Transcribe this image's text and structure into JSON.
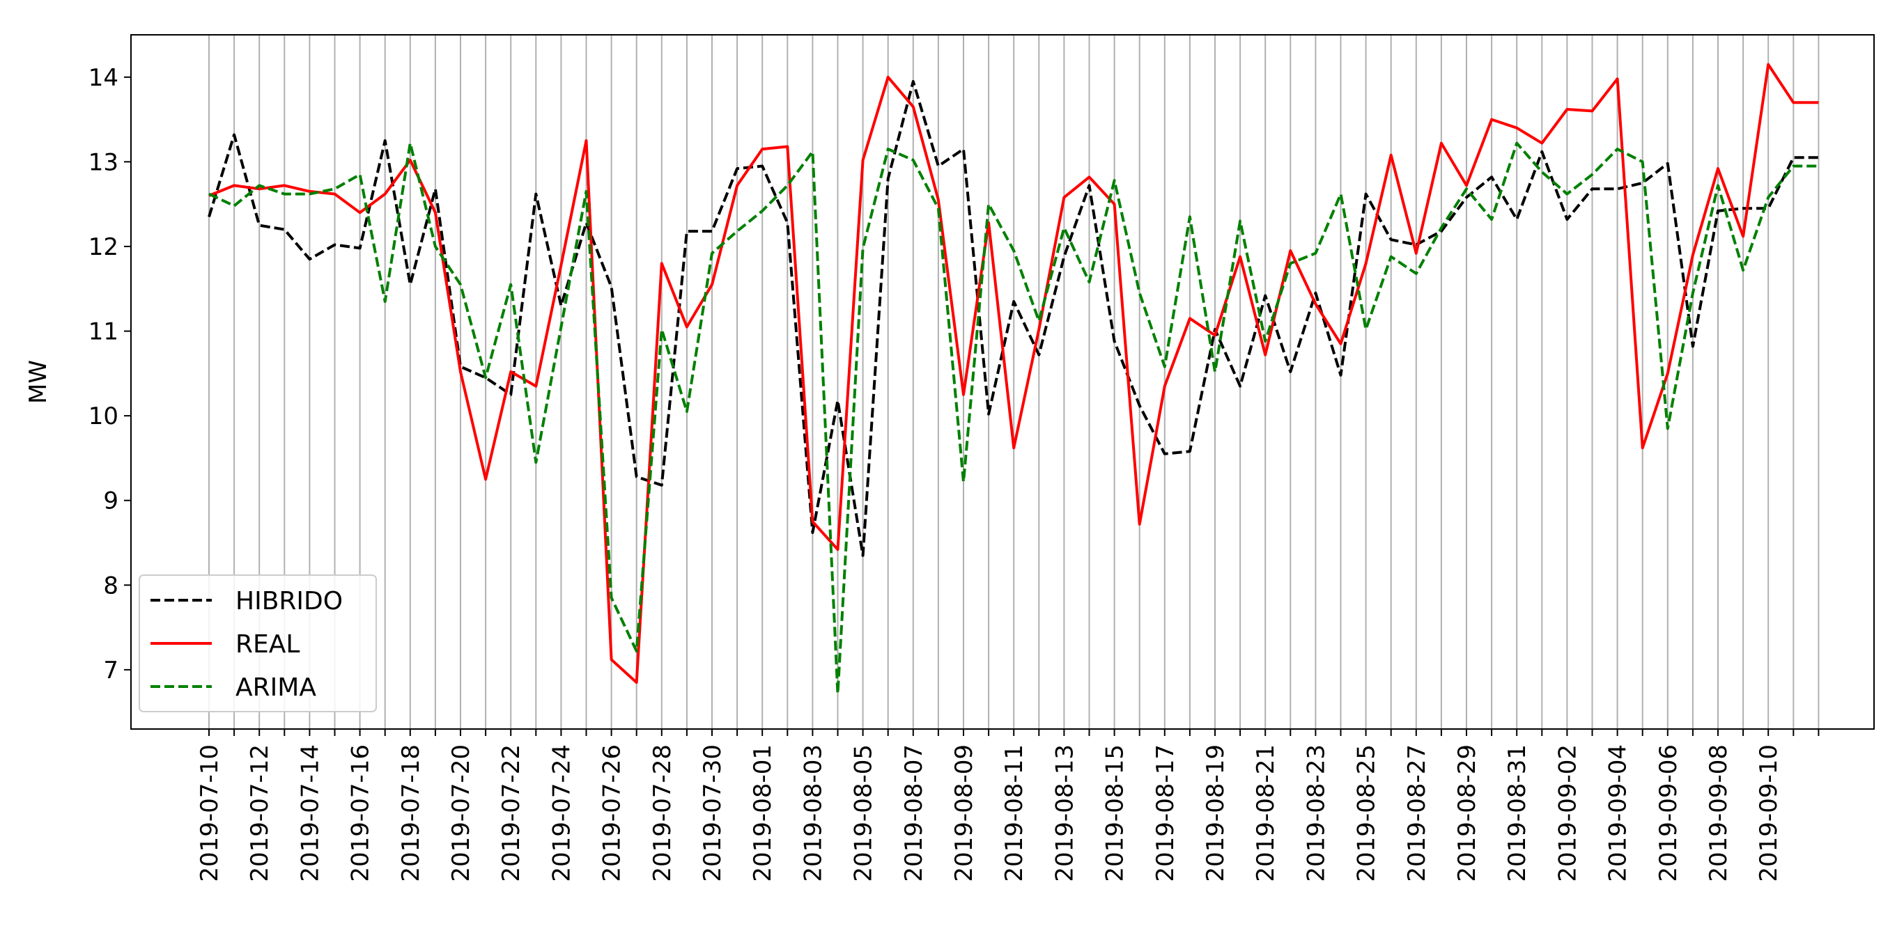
{
  "chart_data": {
    "type": "line",
    "title": "",
    "xlabel": "",
    "ylabel": "MW",
    "ylim": [
      6.3,
      14.5
    ],
    "yticks": [
      7,
      8,
      9,
      10,
      11,
      12,
      13,
      14
    ],
    "grid": "vertical",
    "legend_position": "lower-left",
    "x": [
      "2019-07-10",
      "2019-07-11",
      "2019-07-12",
      "2019-07-13",
      "2019-07-14",
      "2019-07-15",
      "2019-07-16",
      "2019-07-17",
      "2019-07-18",
      "2019-07-19",
      "2019-07-20",
      "2019-07-21",
      "2019-07-22",
      "2019-07-23",
      "2019-07-24",
      "2019-07-25",
      "2019-07-26",
      "2019-07-27",
      "2019-07-28",
      "2019-07-29",
      "2019-07-30",
      "2019-07-31",
      "2019-08-01",
      "2019-08-02",
      "2019-08-03",
      "2019-08-04",
      "2019-08-05",
      "2019-08-06",
      "2019-08-07",
      "2019-08-08",
      "2019-08-09",
      "2019-08-10",
      "2019-08-11",
      "2019-08-12",
      "2019-08-13",
      "2019-08-14",
      "2019-08-15",
      "2019-08-16",
      "2019-08-17",
      "2019-08-18",
      "2019-08-19",
      "2019-08-20",
      "2019-08-21",
      "2019-08-22",
      "2019-08-23",
      "2019-08-24",
      "2019-08-25",
      "2019-08-26",
      "2019-08-27",
      "2019-08-28",
      "2019-08-29",
      "2019-08-30",
      "2019-08-31",
      "2019-09-01",
      "2019-09-02",
      "2019-09-03",
      "2019-09-04",
      "2019-09-05",
      "2019-09-06",
      "2019-09-07",
      "2019-09-08",
      "2019-09-09",
      "2019-09-10",
      "2019-09-11",
      "2019-09-12"
    ],
    "tick_labels": [
      "2019-07-10",
      "2019-07-12",
      "2019-07-14",
      "2019-07-16",
      "2019-07-18",
      "2019-07-20",
      "2019-07-22",
      "2019-07-24",
      "2019-07-26",
      "2019-07-28",
      "2019-07-30",
      "2019-08-01",
      "2019-08-03",
      "2019-08-05",
      "2019-08-07",
      "2019-08-09",
      "2019-08-11",
      "2019-08-13",
      "2019-08-15",
      "2019-08-17",
      "2019-08-19",
      "2019-08-21",
      "2019-08-23",
      "2019-08-25",
      "2019-08-27",
      "2019-08-29",
      "2019-08-31",
      "2019-09-02",
      "2019-09-04",
      "2019-09-06",
      "2019-09-08",
      "2019-09-10"
    ],
    "series": [
      {
        "name": "HIBRIDO",
        "color": "#000000",
        "dash": true,
        "values": [
          12.35,
          13.32,
          12.25,
          12.2,
          11.85,
          12.02,
          11.98,
          13.25,
          11.55,
          12.68,
          10.58,
          10.45,
          10.25,
          12.62,
          11.3,
          12.28,
          11.52,
          9.28,
          9.18,
          12.18,
          12.18,
          12.92,
          12.95,
          12.28,
          8.62,
          10.18,
          8.35,
          12.8,
          13.95,
          12.95,
          13.15,
          10.02,
          11.35,
          10.72,
          11.88,
          12.72,
          10.88,
          10.12,
          9.55,
          9.58,
          11.02,
          10.35,
          11.42,
          10.52,
          11.45,
          10.48,
          12.62,
          12.08,
          12.02,
          12.18,
          12.58,
          12.82,
          12.32,
          13.12,
          12.32,
          12.68,
          12.68,
          12.75,
          12.98,
          10.82,
          12.42,
          12.45,
          12.45,
          13.05,
          13.05
        ]
      },
      {
        "name": "REAL",
        "color": "#ff0000",
        "dash": false,
        "values": [
          12.6,
          12.72,
          12.68,
          12.72,
          12.65,
          12.62,
          12.4,
          12.62,
          13.02,
          12.4,
          10.52,
          9.25,
          10.52,
          10.35,
          11.78,
          13.25,
          7.12,
          6.85,
          11.8,
          11.05,
          11.55,
          12.72,
          13.15,
          13.18,
          8.75,
          8.42,
          13.02,
          14.0,
          13.65,
          12.55,
          10.25,
          12.28,
          9.62,
          11.02,
          12.58,
          12.82,
          12.5,
          8.72,
          10.35,
          11.15,
          10.95,
          11.88,
          10.72,
          11.95,
          11.32,
          10.85,
          11.8,
          13.08,
          11.92,
          13.22,
          12.72,
          13.5,
          13.4,
          13.22,
          13.62,
          13.6,
          13.98,
          9.62,
          10.5,
          11.9,
          12.92,
          12.12,
          14.15,
          13.7,
          13.7
        ]
      },
      {
        "name": "ARIMA",
        "color": "#008000",
        "dash": true,
        "values": [
          12.62,
          12.48,
          12.72,
          12.62,
          12.62,
          12.68,
          12.85,
          11.35,
          13.22,
          12.0,
          11.55,
          10.45,
          11.55,
          9.45,
          11.05,
          12.65,
          7.85,
          7.22,
          11.02,
          10.05,
          11.92,
          12.18,
          12.42,
          12.72,
          13.12,
          6.72,
          11.98,
          13.15,
          13.02,
          12.45,
          9.22,
          12.5,
          11.95,
          11.12,
          12.22,
          11.58,
          12.78,
          11.45,
          10.58,
          12.35,
          10.52,
          12.3,
          10.88,
          11.8,
          11.92,
          12.62,
          11.02,
          11.88,
          11.68,
          12.22,
          12.68,
          12.32,
          13.22,
          12.88,
          12.62,
          12.85,
          13.15,
          13.0,
          9.85,
          11.45,
          12.72,
          11.72,
          12.58,
          12.95,
          12.95
        ]
      }
    ]
  }
}
